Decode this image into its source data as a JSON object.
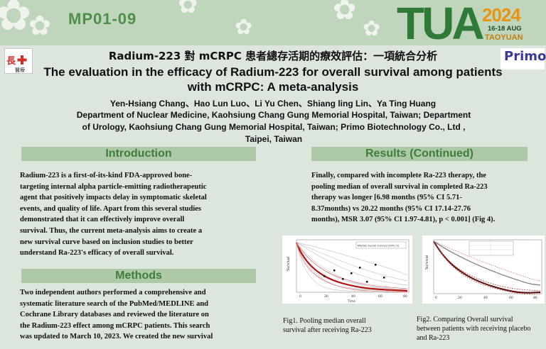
{
  "header": {
    "poster_id": "MP01-09",
    "logo_tua": "TUA",
    "logo_year": "2024",
    "logo_dates": "16-18 AUG",
    "logo_city": "TAOYUAN",
    "logo_cgmh": "長庚醫療",
    "logo_primo": "Primo",
    "background_color": "#bfd6bd",
    "accent_green": "#4f8f4a",
    "accent_orange": "#f0a81c"
  },
  "title": {
    "zh": "Radium-223 對 mCRPC 患者總存活期的療效評估：一項統合分析",
    "en_line1": "The evaluation in the efficacy of Radium-223 for overall survival among patients",
    "en_line2": "with mCRPC: A meta-analysis"
  },
  "authors": "Yen-Hsiang Chang、Hao Lun Luo、Li Yu Chen、Shiang ling Lin、Ya Ting Huang",
  "affiliations": [
    "Department of Nuclear Medicine, Kaohsiung Chang Gung Memorial Hospital, Taiwan; Department",
    "of Urology, Kaohsiung Chang Gung Memorial Hospital, Taiwan; Primo Biotechnology Co., Ltd ,",
    "Taipei, Taiwan"
  ],
  "introduction": {
    "heading": "Introduction",
    "lines": [
      "Radium-223 is a first-of-its-kind FDA-approved bone-",
      "targeting internal alpha particle-emitting radiotherapeutic",
      "agent that positively impacts delay in symptomatic skeletal",
      "events, and quality of life. Apart from this several studies",
      "demonstrated that it can effectively improve overall",
      "survival. Thus, the current meta-analysis aims to create a",
      "new survival curve based on inclusion studies to better",
      "understand Ra-223's efficacy of overall survival."
    ]
  },
  "methods": {
    "heading": "Methods",
    "lines": [
      "Two independent authors performed a comprehensive and",
      "systematic literature search of the PubMed/MEDLINE and",
      "Cochrane Library databases and reviewed the literature on",
      "the Radium-223 effect among mCRPC patients. This search",
      "was updated to March 10, 2023.  We created the new survival"
    ]
  },
  "results": {
    "heading": "Results (Continued)",
    "lines": [
      "Finally, compared with incomplete Ra-223 therapy, the",
      "pooling median of overall survival in completed Ra-223",
      "therapy was longer [6.98 months (95% CI 5.71-",
      "8.37months) vs 20.22 months (95% CI 17.14-27.76",
      "months), MSR 3.07 (95% CI 1.97-4.81), p < 0.001] (Fig 4)."
    ]
  },
  "figures": [
    {
      "ylabel": "Survival",
      "xlabel": "Time",
      "inset_text": "Median overall survival (95% CI)",
      "x_ticks": [
        "0",
        "20",
        "40",
        "60",
        "80"
      ],
      "caption_lines": [
        "Fig1. Pooling median overall",
        "survival after receiving Ra-223"
      ]
    },
    {
      "ylabel": "Survival",
      "caption_lines": [
        "Fig2. Comparing Overall survival",
        "between patients with receiving placebo",
        "and Ra-223"
      ]
    }
  ]
}
